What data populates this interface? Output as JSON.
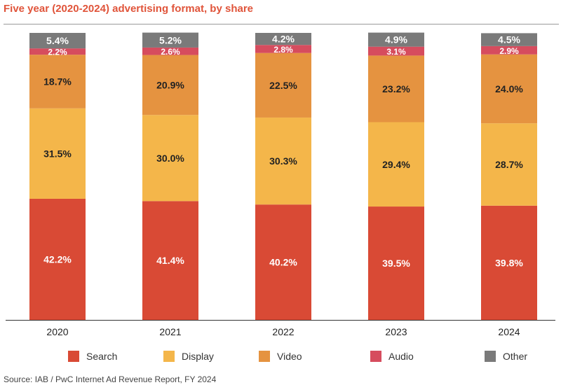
{
  "title": "Five year (2020-2024) advertising format, by share",
  "source": "Source: IAB / PwC Internet Ad Revenue Report, FY 2024",
  "colors": {
    "Search": "#d94a35",
    "Display": "#f4b64a",
    "Video": "#e59340",
    "Audio": "#d64c5e",
    "Other": "#7a7a7a",
    "title": "#e0543a"
  },
  "legend": {
    "placement": "bottom",
    "items": [
      "Search",
      "Display",
      "Video",
      "Audio",
      "Other"
    ]
  },
  "chart_data": {
    "type": "bar",
    "stacked": true,
    "categories": [
      "2020",
      "2021",
      "2022",
      "2023",
      "2024"
    ],
    "ylim": [
      0,
      100
    ],
    "grid": false,
    "series": [
      {
        "name": "Search",
        "values": [
          42.2,
          41.4,
          40.2,
          39.5,
          39.8
        ],
        "labels": [
          "42.2%",
          "41.4%",
          "40.2%",
          "39.5%",
          "39.8%"
        ]
      },
      {
        "name": "Display",
        "values": [
          31.5,
          30.0,
          30.3,
          29.4,
          28.7
        ],
        "labels": [
          "31.5%",
          "30.0%",
          "30.3%",
          "29.4%",
          "28.7%"
        ]
      },
      {
        "name": "Video",
        "values": [
          18.7,
          20.9,
          22.5,
          23.2,
          24.0
        ],
        "labels": [
          "18.7%",
          "20.9%",
          "22.5%",
          "23.2%",
          "24.0%"
        ]
      },
      {
        "name": "Audio",
        "values": [
          2.2,
          2.6,
          2.8,
          3.1,
          2.9
        ],
        "labels": [
          "2.2%",
          "2.6%",
          "2.8%",
          "3.1%",
          "2.9%"
        ]
      },
      {
        "name": "Other",
        "values": [
          5.4,
          5.2,
          4.2,
          4.9,
          4.5
        ],
        "labels": [
          "5.4%",
          "5.2%",
          "4.2%",
          "4.9%",
          "4.5%"
        ]
      }
    ]
  }
}
